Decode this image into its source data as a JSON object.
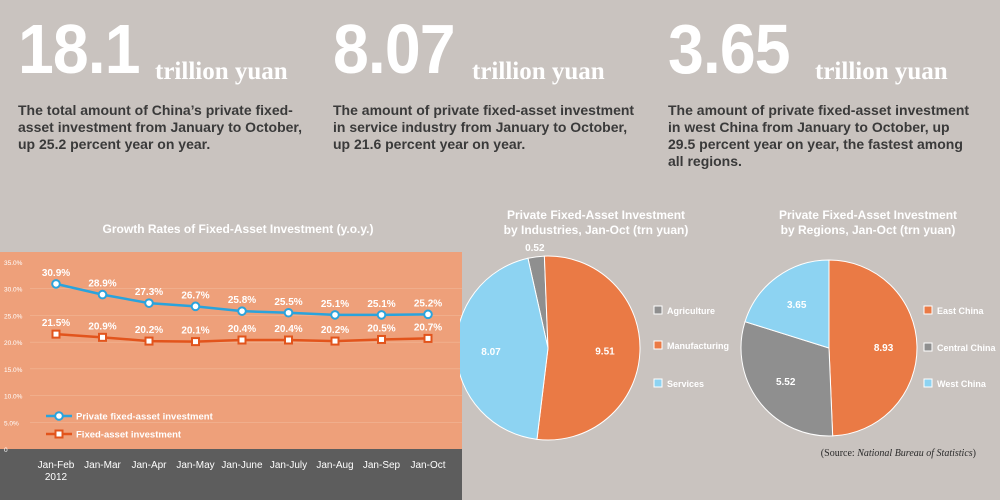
{
  "stats": [
    {
      "value": "18.1",
      "unit": "trillion yuan",
      "desc_lines": [
        "The total amount of China’s private fixed-",
        "asset investment from January to October,",
        "up 25.2 percent year on year."
      ]
    },
    {
      "value": "8.07",
      "unit": "trillion yuan",
      "desc_lines": [
        "The amount of private fixed-asset investment",
        "in service industry from January to October,",
        "up 21.6 percent year on year."
      ]
    },
    {
      "value": "3.65",
      "unit": "trillion yuan",
      "desc_lines": [
        "The amount of private fixed-asset investment",
        "in west China from January to October, up",
        "29.5 percent year on year, the fastest among",
        "all regions."
      ]
    }
  ],
  "source": {
    "prefix": "(Source: ",
    "name": "National Bureau of Statistics",
    "suffix": ")"
  },
  "chart_data": [
    {
      "type": "line",
      "title": "Growth Rates of Fixed-Asset Investment (y.o.y.)",
      "categories": [
        "Jan-Feb|2012",
        "Jan-Mar",
        "Jan-Apr",
        "Jan-May",
        "Jan-June",
        "Jan-July",
        "Jan-Aug",
        "Jan-Sep",
        "Jan-Oct"
      ],
      "yticks": [
        "35.0%",
        "30.0%",
        "25.0%",
        "20.0%",
        "15.0%",
        "10.0%",
        "5.0%",
        "0"
      ],
      "ylim": [
        0,
        35
      ],
      "series": [
        {
          "name": "Private fixed-asset investment",
          "values": [
            30.9,
            28.9,
            27.3,
            26.7,
            25.8,
            25.5,
            25.1,
            25.1,
            25.2
          ],
          "labels": [
            "30.9%",
            "28.9%",
            "27.3%",
            "26.7%",
            "25.8%",
            "25.5%",
            "25.1%",
            "25.1%",
            "25.2%"
          ],
          "color": "#2aa3dc",
          "marker": "circle"
        },
        {
          "name": "Fixed-asset investment",
          "values": [
            21.5,
            20.9,
            20.2,
            20.1,
            20.4,
            20.4,
            20.2,
            20.5,
            20.7
          ],
          "labels": [
            "21.5%",
            "20.9%",
            "20.2%",
            "20.1%",
            "20.4%",
            "20.4%",
            "20.2%",
            "20.5%",
            "20.7%"
          ],
          "color": "#e2541c",
          "marker": "square"
        }
      ],
      "colors": {
        "plot_bg": "#eea07a",
        "axis_bg": "#5d5d5d"
      }
    },
    {
      "type": "pie",
      "title_lines": [
        "Private Fixed-Asset Investment",
        "by Industries, Jan-Oct (trn yuan)"
      ],
      "slices": [
        {
          "label": "Agriculture",
          "value": 0.52,
          "text": "0.52",
          "color": "#8f8f8f"
        },
        {
          "label": "Manufacturing",
          "value": 9.51,
          "text": "9.51",
          "color": "#ea7a45"
        },
        {
          "label": "Services",
          "value": 8.07,
          "text": "8.07",
          "color": "#8dd3f2"
        }
      ]
    },
    {
      "type": "pie",
      "title_lines": [
        "Private Fixed-Asset Investment",
        "by Regions, Jan-Oct (trn yuan)"
      ],
      "slices": [
        {
          "label": "East China",
          "value": 8.93,
          "text": "8.93",
          "color": "#ea7a45"
        },
        {
          "label": "Central China",
          "value": 5.52,
          "text": "5.52",
          "color": "#8f8f8f"
        },
        {
          "label": "West China",
          "value": 3.65,
          "text": "3.65",
          "color": "#8dd3f2"
        }
      ]
    }
  ]
}
